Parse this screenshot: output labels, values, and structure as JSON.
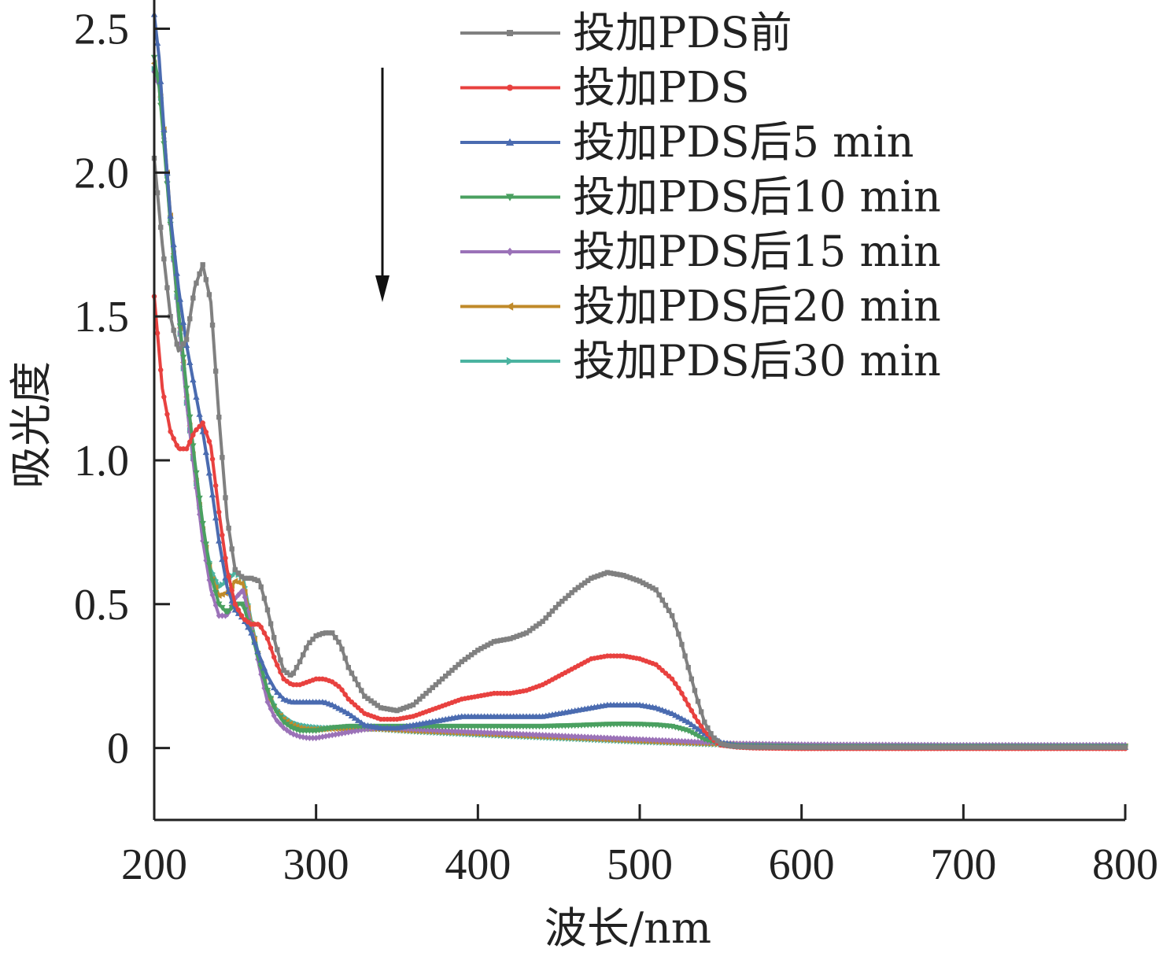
{
  "chart_data": {
    "type": "line",
    "title": "",
    "xlabel": "波长/nm",
    "ylabel": "吸光度",
    "xlim": [
      200,
      800
    ],
    "ylim": [
      -0.25,
      2.6
    ],
    "xticks": [
      200,
      300,
      400,
      500,
      600,
      700,
      800
    ],
    "yticks": [
      0,
      0.5,
      1.0,
      1.5,
      2.0,
      2.5
    ],
    "xtick_labels": [
      "200",
      "300",
      "400",
      "500",
      "600",
      "700",
      "800"
    ],
    "ytick_labels": [
      "0",
      "0.5",
      "1.0",
      "1.5",
      "2.0",
      "2.5"
    ],
    "grid": false,
    "legend_position": "top-right",
    "annotation": "downward arrow indicating decreasing absorbance over time",
    "series": [
      {
        "name": "投加PDS前",
        "color": "#808080",
        "marker": "square",
        "x": [
          200,
          205,
          210,
          215,
          220,
          225,
          230,
          235,
          240,
          245,
          250,
          255,
          260,
          265,
          270,
          275,
          280,
          285,
          290,
          295,
          300,
          305,
          310,
          315,
          320,
          330,
          340,
          350,
          360,
          370,
          380,
          390,
          400,
          410,
          420,
          430,
          440,
          450,
          460,
          470,
          480,
          490,
          500,
          510,
          520,
          525,
          530,
          535,
          540,
          545,
          550,
          555,
          560,
          570,
          580,
          600,
          650,
          700,
          750,
          800
        ],
        "y": [
          2.05,
          1.75,
          1.5,
          1.38,
          1.42,
          1.6,
          1.68,
          1.55,
          1.15,
          0.8,
          0.62,
          0.59,
          0.59,
          0.58,
          0.48,
          0.36,
          0.27,
          0.25,
          0.3,
          0.36,
          0.39,
          0.4,
          0.4,
          0.36,
          0.28,
          0.18,
          0.14,
          0.13,
          0.15,
          0.2,
          0.25,
          0.3,
          0.34,
          0.37,
          0.38,
          0.4,
          0.44,
          0.5,
          0.55,
          0.59,
          0.61,
          0.6,
          0.58,
          0.55,
          0.46,
          0.38,
          0.28,
          0.18,
          0.09,
          0.04,
          0.015,
          0.008,
          0.005,
          0.003,
          0.003,
          0.002,
          0.002,
          0.002,
          0.002,
          0.002
        ]
      },
      {
        "name": "投加PDS",
        "color": "#e8413f",
        "marker": "circle",
        "x": [
          200,
          205,
          210,
          215,
          220,
          225,
          230,
          235,
          240,
          245,
          250,
          255,
          260,
          265,
          270,
          275,
          280,
          285,
          290,
          295,
          300,
          305,
          310,
          315,
          320,
          330,
          340,
          350,
          360,
          370,
          380,
          390,
          400,
          410,
          420,
          430,
          440,
          450,
          460,
          470,
          480,
          490,
          500,
          510,
          520,
          525,
          530,
          535,
          540,
          545,
          550,
          560,
          570,
          600,
          650,
          700,
          750,
          800
        ],
        "y": [
          1.57,
          1.25,
          1.1,
          1.04,
          1.04,
          1.1,
          1.13,
          1.05,
          0.82,
          0.62,
          0.5,
          0.45,
          0.43,
          0.43,
          0.38,
          0.3,
          0.24,
          0.22,
          0.22,
          0.23,
          0.24,
          0.24,
          0.23,
          0.21,
          0.17,
          0.12,
          0.1,
          0.1,
          0.11,
          0.13,
          0.15,
          0.17,
          0.18,
          0.19,
          0.19,
          0.2,
          0.22,
          0.25,
          0.28,
          0.31,
          0.32,
          0.32,
          0.31,
          0.29,
          0.24,
          0.2,
          0.15,
          0.1,
          0.06,
          0.03,
          0.01,
          0.003,
          0.0,
          -0.002,
          -0.002,
          -0.002,
          -0.002,
          -0.002
        ]
      },
      {
        "name": "投加PDS后5 min",
        "color": "#4a6bb0",
        "marker": "triangle-up",
        "x": [
          200,
          203,
          206,
          210,
          215,
          220,
          225,
          230,
          235,
          240,
          245,
          250,
          255,
          260,
          265,
          270,
          275,
          280,
          285,
          290,
          295,
          300,
          305,
          310,
          320,
          330,
          340,
          350,
          360,
          370,
          380,
          390,
          400,
          410,
          420,
          430,
          440,
          450,
          460,
          470,
          480,
          490,
          500,
          510,
          520,
          530,
          540,
          550,
          560,
          600,
          700,
          800
        ],
        "y": [
          2.55,
          2.4,
          2.15,
          1.85,
          1.6,
          1.4,
          1.25,
          1.1,
          0.92,
          0.72,
          0.56,
          0.48,
          0.45,
          0.4,
          0.32,
          0.25,
          0.2,
          0.17,
          0.16,
          0.16,
          0.16,
          0.16,
          0.16,
          0.15,
          0.12,
          0.08,
          0.07,
          0.07,
          0.08,
          0.09,
          0.1,
          0.11,
          0.11,
          0.11,
          0.11,
          0.11,
          0.11,
          0.12,
          0.13,
          0.14,
          0.15,
          0.15,
          0.15,
          0.14,
          0.12,
          0.09,
          0.05,
          0.02,
          0.008,
          0.003,
          0.003,
          0.003
        ]
      },
      {
        "name": "投加PDS后10 min",
        "color": "#4aa060",
        "marker": "triangle-down",
        "x": [
          200,
          203,
          206,
          210,
          215,
          220,
          225,
          230,
          235,
          240,
          245,
          250,
          255,
          260,
          265,
          270,
          275,
          280,
          285,
          290,
          295,
          300,
          305,
          310,
          320,
          330,
          340,
          350,
          360,
          380,
          400,
          420,
          440,
          460,
          480,
          490,
          500,
          510,
          520,
          530,
          540,
          550,
          560,
          600,
          700,
          800
        ],
        "y": [
          2.4,
          2.3,
          2.1,
          1.82,
          1.52,
          1.25,
          1.0,
          0.78,
          0.6,
          0.5,
          0.47,
          0.5,
          0.5,
          0.4,
          0.3,
          0.2,
          0.13,
          0.09,
          0.07,
          0.06,
          0.06,
          0.06,
          0.065,
          0.07,
          0.075,
          0.075,
          0.075,
          0.075,
          0.075,
          0.075,
          0.075,
          0.075,
          0.075,
          0.078,
          0.082,
          0.083,
          0.082,
          0.08,
          0.075,
          0.06,
          0.03,
          0.015,
          0.008,
          0.005,
          0.005,
          0.005
        ]
      },
      {
        "name": "投加PDS后15 min",
        "color": "#9b72b8",
        "marker": "diamond",
        "x": [
          200,
          203,
          206,
          210,
          215,
          220,
          225,
          230,
          235,
          240,
          245,
          250,
          255,
          260,
          265,
          270,
          275,
          280,
          285,
          290,
          295,
          300,
          305,
          310,
          320,
          330,
          340,
          350,
          360,
          380,
          400,
          420,
          440,
          460,
          480,
          500,
          520,
          540,
          560,
          600,
          700,
          800
        ],
        "y": [
          2.35,
          2.3,
          2.12,
          1.82,
          1.5,
          1.2,
          0.95,
          0.72,
          0.55,
          0.46,
          0.46,
          0.52,
          0.55,
          0.42,
          0.28,
          0.16,
          0.1,
          0.07,
          0.05,
          0.04,
          0.035,
          0.035,
          0.04,
          0.045,
          0.055,
          0.065,
          0.07,
          0.068,
          0.065,
          0.06,
          0.055,
          0.05,
          0.045,
          0.04,
          0.035,
          0.03,
          0.025,
          0.02,
          0.015,
          0.012,
          0.01,
          0.01
        ]
      },
      {
        "name": "投加PDS后20 min",
        "color": "#c08a2a",
        "marker": "triangle-left",
        "x": [
          200,
          203,
          206,
          210,
          215,
          220,
          225,
          230,
          235,
          240,
          245,
          250,
          255,
          260,
          265,
          270,
          275,
          280,
          285,
          290,
          295,
          300,
          305,
          310,
          320,
          330,
          340,
          350,
          360,
          380,
          400,
          420,
          440,
          460,
          480,
          500,
          520,
          540,
          560,
          600,
          700,
          800
        ],
        "y": [
          2.38,
          2.32,
          2.15,
          1.85,
          1.52,
          1.22,
          0.97,
          0.76,
          0.6,
          0.53,
          0.54,
          0.58,
          0.57,
          0.43,
          0.3,
          0.19,
          0.13,
          0.1,
          0.08,
          0.07,
          0.065,
          0.065,
          0.066,
          0.067,
          0.068,
          0.068,
          0.066,
          0.063,
          0.06,
          0.055,
          0.05,
          0.045,
          0.04,
          0.035,
          0.03,
          0.025,
          0.02,
          0.016,
          0.012,
          0.008,
          0.006,
          0.006
        ]
      },
      {
        "name": "投加PDS后30 min",
        "color": "#4bb3a0",
        "marker": "triangle-right",
        "x": [
          200,
          203,
          206,
          210,
          215,
          220,
          225,
          230,
          235,
          240,
          245,
          250,
          255,
          260,
          265,
          270,
          275,
          280,
          285,
          290,
          295,
          300,
          305,
          310,
          320,
          330,
          340,
          350,
          360,
          380,
          400,
          420,
          440,
          460,
          480,
          500,
          520,
          540,
          560,
          600,
          700,
          800
        ],
        "y": [
          2.36,
          2.32,
          2.14,
          1.84,
          1.5,
          1.2,
          0.96,
          0.76,
          0.62,
          0.56,
          0.58,
          0.61,
          0.59,
          0.44,
          0.31,
          0.2,
          0.14,
          0.11,
          0.09,
          0.08,
          0.075,
          0.072,
          0.07,
          0.07,
          0.07,
          0.068,
          0.066,
          0.062,
          0.058,
          0.052,
          0.047,
          0.042,
          0.037,
          0.032,
          0.027,
          0.022,
          0.018,
          0.014,
          0.011,
          0.008,
          0.007,
          0.007
        ]
      }
    ]
  }
}
